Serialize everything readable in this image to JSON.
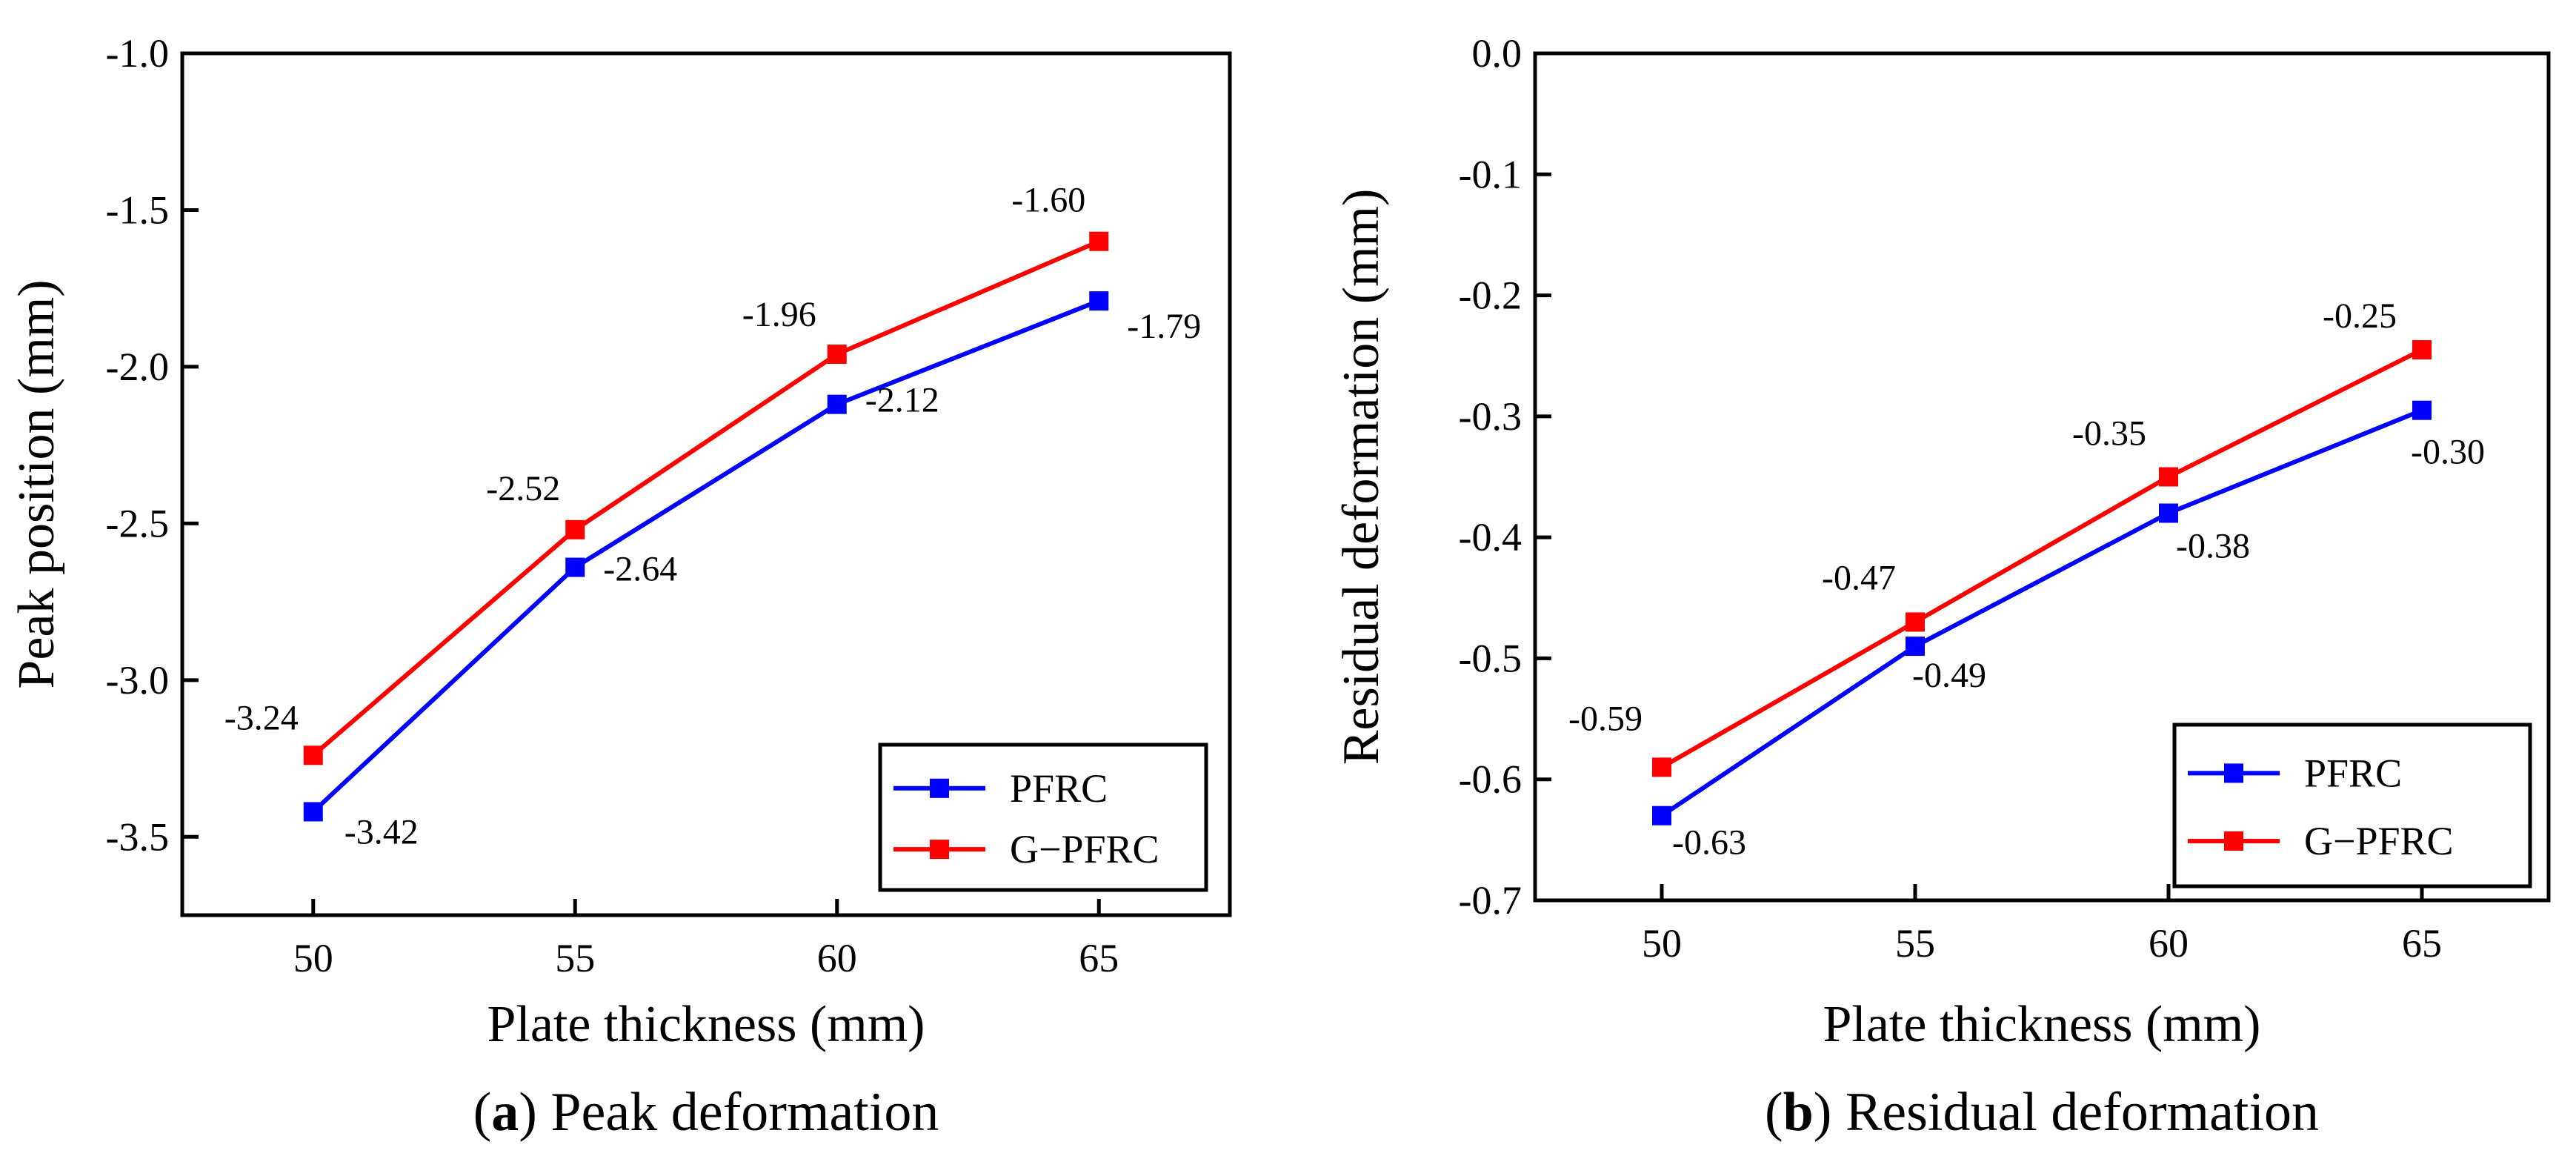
{
  "chart_data": [
    {
      "type": "line",
      "caption_letter": "a",
      "caption_text": "Peak deformation",
      "xlabel": "Plate thickness (mm)",
      "ylabel": "Peak position (mm)",
      "x": [
        50,
        55,
        60,
        65
      ],
      "xticks": [
        50,
        55,
        60,
        65
      ],
      "xlim": [
        47.5,
        67.5
      ],
      "ylim": [
        -3.75,
        -1.0
      ],
      "yticks": [
        -1.0,
        -1.5,
        -2.0,
        -2.5,
        -3.0,
        -3.5
      ],
      "ytick_labels": [
        "-1.0",
        "-1.5",
        "-2.0",
        "-2.5",
        "-3.0",
        "-3.5"
      ],
      "legend_position": "bottom-right",
      "grid": false,
      "series": [
        {
          "name": "PFRC",
          "color": "#0000ff",
          "values": [
            -3.42,
            -2.64,
            -2.12,
            -1.79
          ],
          "labels": [
            "-3.42",
            "-2.64",
            "-2.12",
            "-1.79"
          ]
        },
        {
          "name": "G−PFRC",
          "color": "#ff0000",
          "values": [
            -3.24,
            -2.52,
            -1.96,
            -1.6
          ],
          "labels": [
            "-3.24",
            "-2.52",
            "-1.96",
            "-1.60"
          ]
        }
      ]
    },
    {
      "type": "line",
      "caption_letter": "b",
      "caption_text": "Residual deformation",
      "xlabel": "Plate thickness (mm)",
      "ylabel": "Residual deformation (mm)",
      "x": [
        50,
        55,
        60,
        65
      ],
      "xticks": [
        50,
        55,
        60,
        65
      ],
      "xlim": [
        47.5,
        67.5
      ],
      "ylim": [
        -0.7,
        0.0
      ],
      "yticks": [
        0.0,
        -0.1,
        -0.2,
        -0.3,
        -0.4,
        -0.5,
        -0.6,
        -0.7
      ],
      "ytick_labels": [
        "0.0",
        "-0.1",
        "-0.2",
        "-0.3",
        "-0.4",
        "-0.5",
        "-0.6",
        "-0.7"
      ],
      "legend_position": "bottom-right",
      "grid": false,
      "series": [
        {
          "name": "PFRC",
          "color": "#0000ff",
          "values": [
            -0.63,
            -0.49,
            -0.38,
            -0.295
          ],
          "labels": [
            "-0.63",
            "-0.49",
            "-0.38",
            "-0.30"
          ]
        },
        {
          "name": "G−PFRC",
          "color": "#ff0000",
          "values": [
            -0.59,
            -0.47,
            -0.35,
            -0.245
          ],
          "labels": [
            "-0.59",
            "-0.47",
            "-0.35",
            "-0.25"
          ]
        }
      ]
    }
  ]
}
